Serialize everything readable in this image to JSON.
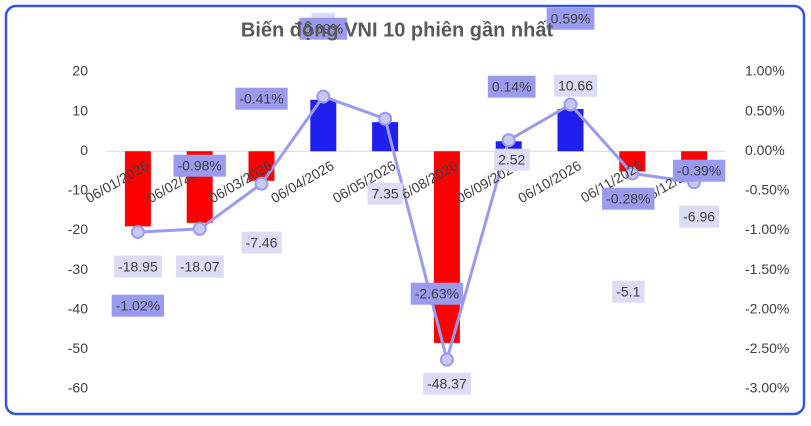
{
  "chart_data": {
    "type": "bar-line",
    "title": "Biến động VNI 10 phiên gần nhất",
    "categories": [
      "06/01/2026",
      "06/02/2026",
      "06/03/2026",
      "06/04/2026",
      "06/05/2026",
      "06/08/2026",
      "06/09/2026",
      "06/10/2026",
      "06/11/2026",
      "06/12/2026"
    ],
    "series": [
      {
        "type": "bar",
        "values": [
          -18.95,
          -18.07,
          -7.46,
          13,
          7.35,
          -48.37,
          2.52,
          10.66,
          -5.1,
          -6.96
        ],
        "color_positive": "#2020ee",
        "color_negative": "#ff0000"
      },
      {
        "type": "line",
        "axis": "y2",
        "color": "#9a9aef",
        "values": [
          -1.02,
          -0.98,
          -0.41,
          0.69,
          0.41,
          -2.63,
          0.14,
          0.59,
          -0.28,
          -0.39
        ],
        "value_labels": [
          "-1.02%",
          "-0.98%",
          "-0.41%",
          "0.69%",
          null,
          "-2.63%",
          "0.14%",
          "0.59%",
          "-0.28%",
          "-0.39%"
        ]
      }
    ],
    "ylim": [
      -60,
      20
    ],
    "yticks": [
      -60,
      -50,
      -40,
      -30,
      -20,
      -10,
      0,
      10,
      20
    ],
    "y2lim": [
      -3,
      1
    ],
    "y2ticks": [
      {
        "value": -3,
        "label": "-3.00%"
      },
      {
        "value": -2.5,
        "label": "-2.50%"
      },
      {
        "value": -2,
        "label": "-2.00%"
      },
      {
        "value": -1.5,
        "label": "-1.50%"
      },
      {
        "value": -1,
        "label": "-1.00%"
      },
      {
        "value": -0.5,
        "label": "-0.50%"
      },
      {
        "value": 0,
        "label": "0.00%"
      },
      {
        "value": 0.5,
        "label": "0.50%"
      },
      {
        "value": 1,
        "label": "1.00%"
      }
    ]
  }
}
